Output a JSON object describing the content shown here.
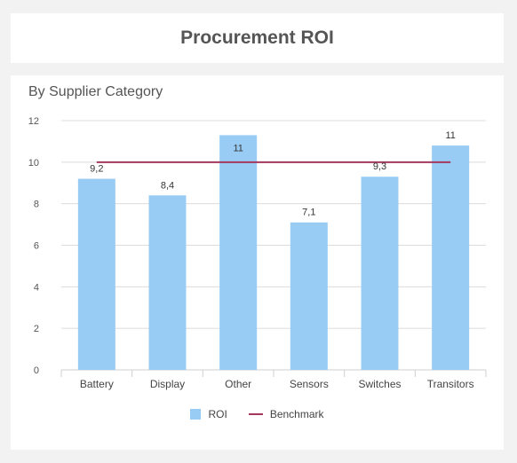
{
  "header": {
    "title": "Procurement ROI"
  },
  "chart_data": {
    "type": "bar",
    "title": "By Supplier Category",
    "xlabel": "",
    "ylabel": "",
    "categories": [
      "Battery",
      "Display",
      "Other",
      "Sensors",
      "Switches",
      "Transitors"
    ],
    "series": [
      {
        "name": "ROI",
        "type": "bar",
        "values": [
          9.2,
          8.4,
          11.3,
          7.1,
          9.3,
          10.8
        ],
        "labels": [
          "9,2",
          "8,4",
          "11",
          "7,1",
          "9,3",
          "11"
        ],
        "color": "#99ccf5"
      },
      {
        "name": "Benchmark",
        "type": "line",
        "values": [
          10,
          10,
          10,
          10,
          10,
          10
        ],
        "color": "#a3385e"
      }
    ],
    "ylim": [
      0,
      12
    ],
    "yticks": [
      0,
      2,
      4,
      6,
      8,
      10,
      12
    ],
    "grid": true,
    "legend": "bottom-center"
  }
}
